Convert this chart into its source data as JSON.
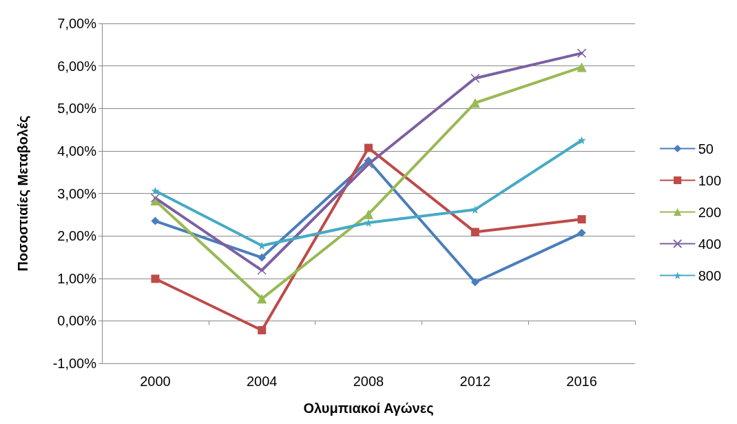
{
  "chart_data": {
    "type": "line",
    "xlabel": "Ολυμπιακοί Αγώνες",
    "ylabel": "Ποσοστιαίες Μεταβολές",
    "categories": [
      "2000",
      "2004",
      "2008",
      "2012",
      "2016"
    ],
    "series": [
      {
        "name": "50",
        "color": "#4a7ebb",
        "marker": "diamond",
        "values": [
          2.35,
          1.49,
          3.77,
          0.91,
          2.07
        ]
      },
      {
        "name": "100",
        "color": "#be4b48",
        "marker": "square",
        "values": [
          0.99,
          -0.22,
          4.07,
          2.09,
          2.39
        ]
      },
      {
        "name": "200",
        "color": "#98b954",
        "marker": "triangle",
        "values": [
          2.83,
          0.52,
          2.51,
          5.13,
          5.97
        ]
      },
      {
        "name": "400",
        "color": "#7d60a0",
        "marker": "cross",
        "values": [
          2.89,
          1.19,
          3.69,
          5.71,
          6.3
        ]
      },
      {
        "name": "800",
        "color": "#46aac5",
        "marker": "star",
        "values": [
          3.06,
          1.77,
          2.31,
          2.62,
          4.25
        ]
      }
    ],
    "ylim": [
      -1,
      7
    ],
    "yticks": [
      {
        "value": -1,
        "label": "-1,00%"
      },
      {
        "value": 0,
        "label": "0,00%"
      },
      {
        "value": 1,
        "label": "1,00%"
      },
      {
        "value": 2,
        "label": "2,00%"
      },
      {
        "value": 3,
        "label": "3,00%"
      },
      {
        "value": 4,
        "label": "4,00%"
      },
      {
        "value": 5,
        "label": "5,00%"
      },
      {
        "value": 6,
        "label": "6,00%"
      },
      {
        "value": 7,
        "label": "7,00%"
      }
    ],
    "grid": "y",
    "legend": "right",
    "line_style": "solid"
  }
}
